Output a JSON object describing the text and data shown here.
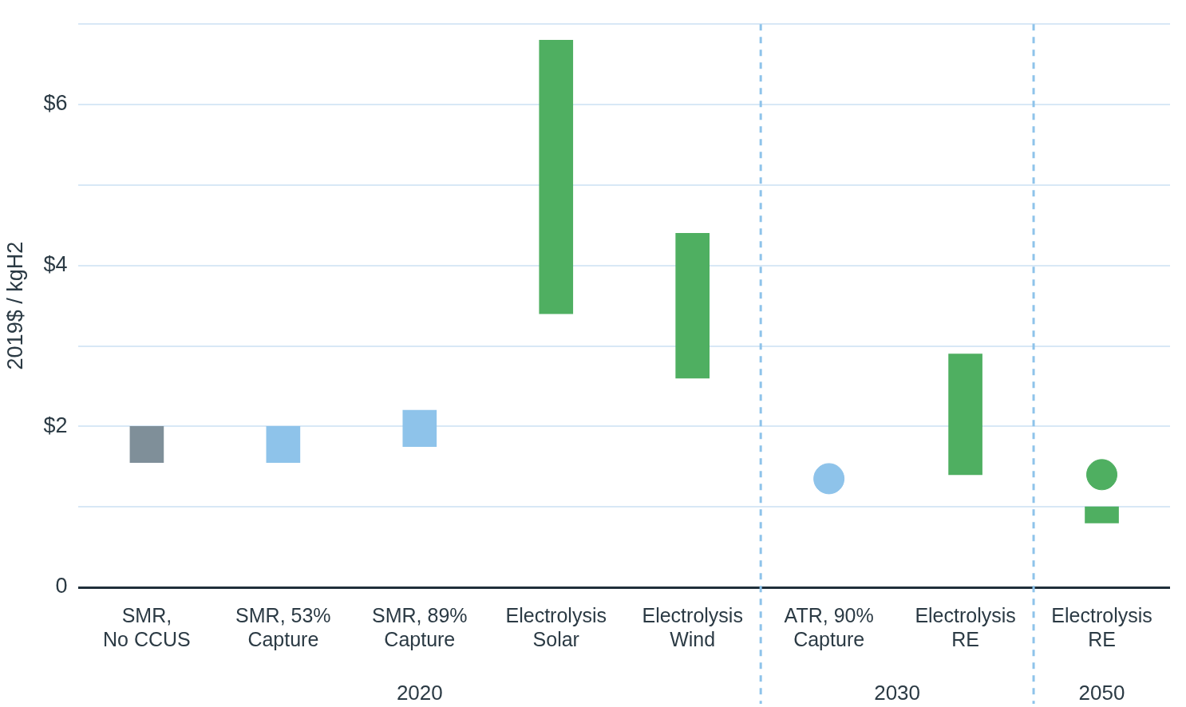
{
  "chart_data": {
    "type": "bar",
    "ylabel": "2019$ / kgH2",
    "categories": [
      "SMR,\nNo CCUS",
      "SMR, 53%\nCapture",
      "SMR, 89%\nCapture",
      "Electrolysis\nSolar",
      "Electrolysis\nWind",
      "ATR, 90%\nCapture",
      "Electrolysis\nRE",
      "Electrolysis\nRE"
    ],
    "series": [
      {
        "base": [
          1.55,
          1.55,
          1.75,
          3.4,
          2.6,
          null,
          1.4,
          0.8
        ],
        "values": [
          0.45,
          0.45,
          0.45,
          3.4,
          1.8,
          null,
          1.5,
          0.2
        ],
        "colors": [
          "#7f8f99",
          "#8ec3ea",
          "#8ec3ea",
          "#4faf61",
          "#4faf61",
          "#8ec3ea",
          "#4faf61",
          "#4faf61"
        ]
      },
      {
        "type": "scatter",
        "values": [
          null,
          null,
          null,
          null,
          null,
          1.35,
          null,
          1.4
        ],
        "colors": [
          "#8ec3ea",
          "#8ec3ea",
          "#8ec3ea",
          "#8ec3ea",
          "#8ec3ea",
          "#8ec3ea",
          "#4faf61",
          "#4faf61"
        ]
      }
    ],
    "ylim": [
      0,
      7
    ],
    "yticks": [
      {
        "value": 0,
        "label": "0"
      },
      {
        "value": 1,
        "label": null
      },
      {
        "value": 2,
        "label": "$2"
      },
      {
        "value": 3,
        "label": null
      },
      {
        "value": 4,
        "label": "$4"
      },
      {
        "value": 5,
        "label": null
      },
      {
        "value": 6,
        "label": "$6"
      },
      {
        "value": 7,
        "label": null
      }
    ],
    "grid": "y",
    "legend": false,
    "marker": "circle",
    "annotations": [
      "2020",
      "2030",
      "2050"
    ]
  }
}
